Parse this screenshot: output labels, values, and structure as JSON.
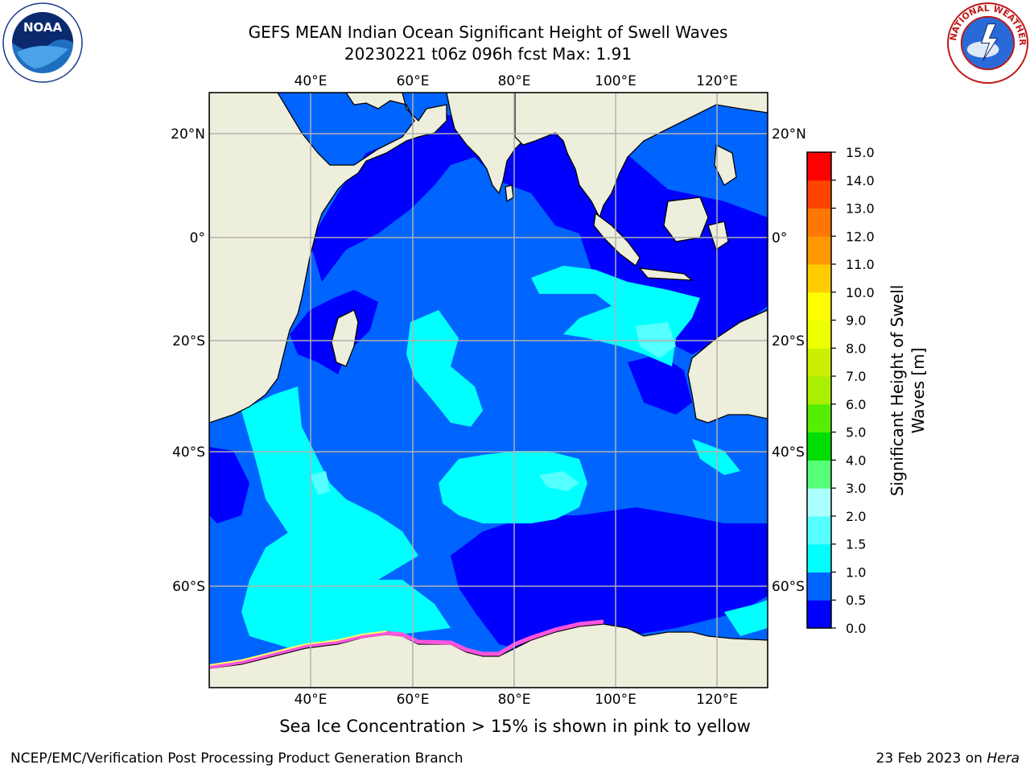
{
  "title": {
    "line1": "GEFS MEAN Indian Ocean Significant Height of Swell Waves",
    "line2": "20230221 t06z 096h fcst   Max: 1.91"
  },
  "map": {
    "lon_labels": [
      "40°E",
      "60°E",
      "80°E",
      "100°E",
      "120°E"
    ],
    "lat_labels": [
      "20°N",
      "0°",
      "20°S",
      "40°S",
      "60°S"
    ],
    "land_color": "#eeeedc",
    "grid_color": "#b0b0b0"
  },
  "colorbar": {
    "title_line1": "Significant Height of Swell",
    "title_line2": "Waves [m]",
    "levels": [
      "0.0",
      "0.5",
      "1.0",
      "1.5",
      "2.0",
      "3.0",
      "4.0",
      "5.0",
      "6.0",
      "7.0",
      "8.0",
      "9.0",
      "10.0",
      "11.0",
      "12.0",
      "13.0",
      "14.0",
      "15.0"
    ],
    "colors": [
      "#0000ff",
      "#0064ff",
      "#00ffff",
      "#55ffff",
      "#aaffff",
      "#55ff77",
      "#00dd00",
      "#55ee00",
      "#aaee00",
      "#ccee00",
      "#eeff00",
      "#ffff00",
      "#ffcc00",
      "#ff9900",
      "#ff7700",
      "#ff4400",
      "#ff0000"
    ]
  },
  "logos": {
    "noaa_text": "NOAA",
    "nws_text": "NATIONAL WEATHER SERVICE"
  },
  "footer": {
    "ice_note": "Sea Ice Concentration > 15% is shown in pink to yellow",
    "credit": "NCEP/EMC/Verification Post Processing Product Generation Branch",
    "run_date": "23 Feb 2023 on ",
    "host": "Hera"
  }
}
